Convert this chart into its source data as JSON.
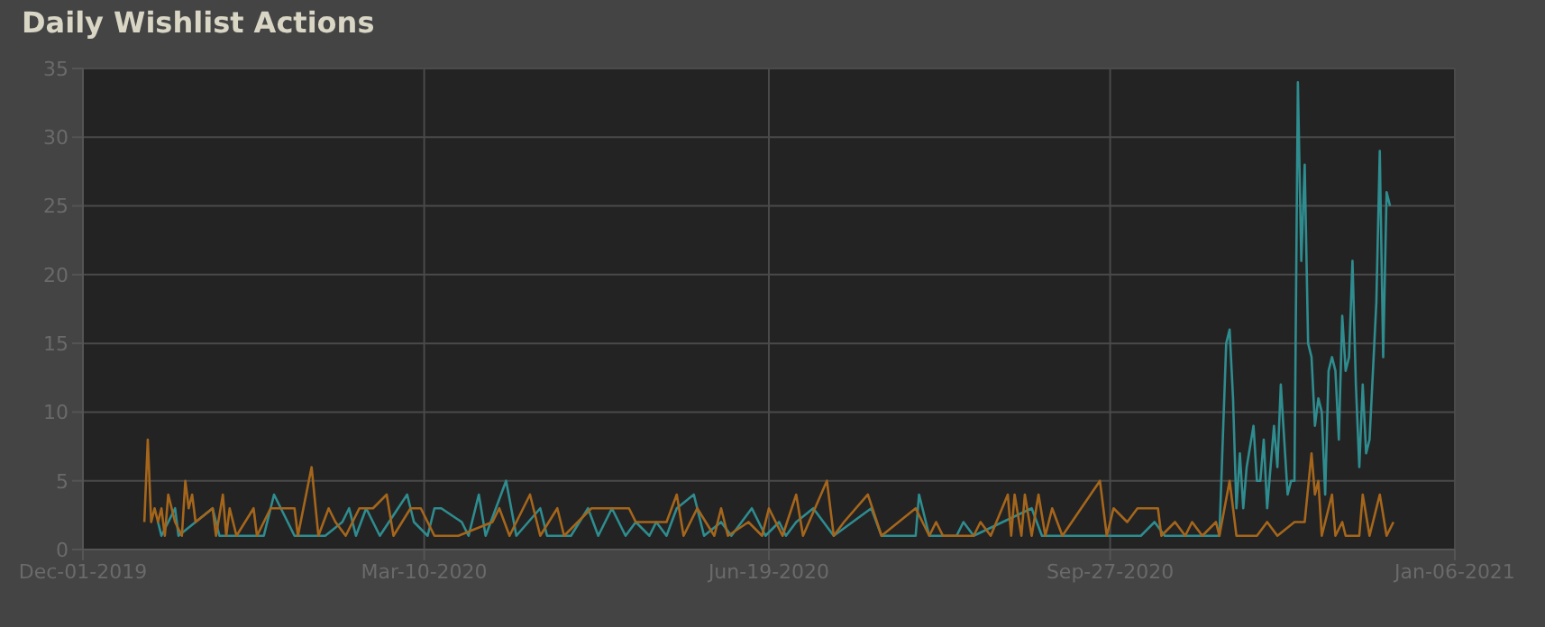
{
  "chart_data": {
    "type": "line",
    "title": "Daily Wishlist Actions",
    "marker": "none",
    "grid": true,
    "xlim": [
      "2019-12-01",
      "2021-01-06"
    ],
    "xticks": [
      {
        "value": "2019-12-01",
        "label": "Dec-01-2019"
      },
      {
        "value": "2020-03-10",
        "label": "Mar-10-2020"
      },
      {
        "value": "2020-06-19",
        "label": "Jun-19-2020"
      },
      {
        "value": "2020-09-27",
        "label": "Sep-27-2020"
      },
      {
        "value": "2021-01-06",
        "label": "Jan-06-2021"
      }
    ],
    "ylim": [
      0,
      35
    ],
    "yticks": [
      0,
      5,
      10,
      15,
      20,
      25,
      30,
      35
    ],
    "series": [
      {
        "color": "#2f8c8f",
        "x": [
          "2019-12-23",
          "2019-12-24",
          "2019-12-28",
          "2019-12-29",
          "2020-01-03",
          "2020-01-08",
          "2020-01-10",
          "2020-01-23",
          "2020-01-26",
          "2020-01-30",
          "2020-02-01",
          "2020-02-10",
          "2020-02-15",
          "2020-02-17",
          "2020-02-19",
          "2020-02-22",
          "2020-02-26",
          "2020-03-05",
          "2020-03-07",
          "2020-03-11",
          "2020-03-13",
          "2020-03-15",
          "2020-03-21",
          "2020-03-23",
          "2020-03-26",
          "2020-03-28",
          "2020-04-03",
          "2020-04-06",
          "2020-04-13",
          "2020-04-15",
          "2020-04-22",
          "2020-04-27",
          "2020-04-30",
          "2020-05-04",
          "2020-05-08",
          "2020-05-11",
          "2020-05-15",
          "2020-05-17",
          "2020-05-20",
          "2020-05-23",
          "2020-05-28",
          "2020-05-31",
          "2020-06-05",
          "2020-06-08",
          "2020-06-14",
          "2020-06-18",
          "2020-06-22",
          "2020-06-24",
          "2020-06-27",
          "2020-07-02",
          "2020-07-05",
          "2020-07-08",
          "2020-07-19",
          "2020-07-22",
          "2020-08-01",
          "2020-08-02",
          "2020-08-05",
          "2020-08-13",
          "2020-08-15",
          "2020-08-18",
          "2020-09-04",
          "2020-09-07",
          "2020-09-26",
          "2020-10-06",
          "2020-10-10",
          "2020-10-13",
          "2020-10-28",
          "2020-10-29",
          "2020-10-31",
          "2020-11-01",
          "2020-11-02",
          "2020-11-03",
          "2020-11-04",
          "2020-11-05",
          "2020-11-06",
          "2020-11-08",
          "2020-11-09",
          "2020-11-10",
          "2020-11-11",
          "2020-11-12",
          "2020-11-14",
          "2020-11-15",
          "2020-11-16",
          "2020-11-18",
          "2020-11-19",
          "2020-11-20",
          "2020-11-21",
          "2020-11-22",
          "2020-11-23",
          "2020-11-24",
          "2020-11-25",
          "2020-11-26",
          "2020-11-27",
          "2020-11-28",
          "2020-11-29",
          "2020-11-30",
          "2020-12-01",
          "2020-12-02",
          "2020-12-03",
          "2020-12-04",
          "2020-12-05",
          "2020-12-06",
          "2020-12-07",
          "2020-12-08",
          "2020-12-09",
          "2020-12-10",
          "2020-12-11",
          "2020-12-12",
          "2020-12-14",
          "2020-12-15",
          "2020-12-16",
          "2020-12-17",
          "2020-12-18"
        ],
        "values": [
          2,
          1,
          3,
          1,
          2,
          3,
          1,
          1,
          4,
          2,
          1,
          1,
          2,
          3,
          1,
          3,
          1,
          4,
          2,
          1,
          3,
          3,
          2,
          1,
          4,
          1,
          5,
          1,
          3,
          1,
          1,
          3,
          1,
          3,
          1,
          2,
          1,
          2,
          1,
          3,
          4,
          1,
          2,
          1,
          3,
          1,
          2,
          1,
          2,
          3,
          2,
          1,
          3,
          1,
          1,
          4,
          1,
          1,
          2,
          1,
          3,
          1,
          1,
          1,
          2,
          1,
          1,
          1,
          15,
          16,
          11,
          3,
          7,
          3,
          6,
          9,
          5,
          5,
          8,
          3,
          9,
          6,
          12,
          4,
          5,
          5,
          34,
          21,
          28,
          15,
          14,
          9,
          11,
          10,
          4,
          13,
          14,
          13,
          8,
          17,
          13,
          14,
          21,
          12,
          6,
          12,
          7,
          8,
          18,
          29,
          14,
          26,
          25
        ]
      },
      {
        "color": "#a5661c",
        "x": [
          "2019-12-19",
          "2019-12-20",
          "2019-12-21",
          "2019-12-22",
          "2019-12-23",
          "2019-12-24",
          "2019-12-25",
          "2019-12-26",
          "2019-12-28",
          "2019-12-30",
          "2019-12-31",
          "2020-01-01",
          "2020-01-02",
          "2020-01-03",
          "2020-01-08",
          "2020-01-09",
          "2020-01-11",
          "2020-01-12",
          "2020-01-13",
          "2020-01-15",
          "2020-01-20",
          "2020-01-21",
          "2020-01-25",
          "2020-01-28",
          "2020-02-01",
          "2020-02-02",
          "2020-02-06",
          "2020-02-08",
          "2020-02-11",
          "2020-02-13",
          "2020-02-16",
          "2020-02-20",
          "2020-02-24",
          "2020-02-28",
          "2020-03-01",
          "2020-03-06",
          "2020-03-09",
          "2020-03-13",
          "2020-03-20",
          "2020-03-30",
          "2020-04-01",
          "2020-04-04",
          "2020-04-10",
          "2020-04-13",
          "2020-04-18",
          "2020-04-20",
          "2020-04-28",
          "2020-05-02",
          "2020-05-06",
          "2020-05-09",
          "2020-05-11",
          "2020-05-20",
          "2020-05-23",
          "2020-05-25",
          "2020-05-29",
          "2020-06-03",
          "2020-06-05",
          "2020-06-07",
          "2020-06-13",
          "2020-06-17",
          "2020-06-19",
          "2020-06-23",
          "2020-06-27",
          "2020-06-29",
          "2020-07-06",
          "2020-07-08",
          "2020-07-11",
          "2020-07-18",
          "2020-07-22",
          "2020-08-01",
          "2020-08-05",
          "2020-08-07",
          "2020-08-09",
          "2020-08-18",
          "2020-08-20",
          "2020-08-23",
          "2020-08-28",
          "2020-08-29",
          "2020-08-30",
          "2020-09-01",
          "2020-09-02",
          "2020-09-04",
          "2020-09-06",
          "2020-09-08",
          "2020-09-10",
          "2020-09-13",
          "2020-09-24",
          "2020-09-26",
          "2020-09-28",
          "2020-10-02",
          "2020-10-05",
          "2020-10-08",
          "2020-10-11",
          "2020-10-12",
          "2020-10-16",
          "2020-10-19",
          "2020-10-21",
          "2020-10-24",
          "2020-10-28",
          "2020-10-29",
          "2020-11-01",
          "2020-11-03",
          "2020-11-09",
          "2020-11-12",
          "2020-11-15",
          "2020-11-20",
          "2020-11-21",
          "2020-11-23",
          "2020-11-25",
          "2020-11-26",
          "2020-11-27",
          "2020-11-28",
          "2020-12-01",
          "2020-12-02",
          "2020-12-04",
          "2020-12-05",
          "2020-12-09",
          "2020-12-10",
          "2020-12-12",
          "2020-12-15",
          "2020-12-17",
          "2020-12-19"
        ],
        "values": [
          2,
          8,
          2,
          3,
          2,
          3,
          1,
          4,
          2,
          1,
          5,
          3,
          4,
          2,
          3,
          1,
          4,
          1,
          3,
          1,
          3,
          1,
          3,
          3,
          3,
          1,
          6,
          1,
          3,
          2,
          1,
          3,
          3,
          4,
          1,
          3,
          3,
          1,
          1,
          2,
          3,
          1,
          4,
          1,
          3,
          1,
          3,
          3,
          3,
          3,
          2,
          2,
          4,
          1,
          3,
          1,
          3,
          1,
          2,
          1,
          3,
          1,
          4,
          1,
          5,
          1,
          2,
          4,
          1,
          3,
          1,
          2,
          1,
          1,
          2,
          1,
          4,
          1,
          4,
          1,
          4,
          1,
          4,
          1,
          3,
          1,
          5,
          1,
          3,
          2,
          3,
          3,
          3,
          1,
          2,
          1,
          2,
          1,
          2,
          1,
          5,
          1,
          1,
          2,
          1,
          2,
          2,
          2,
          7,
          4,
          5,
          1,
          4,
          1,
          2,
          1,
          1,
          4,
          1,
          4,
          1,
          2
        ]
      }
    ]
  }
}
